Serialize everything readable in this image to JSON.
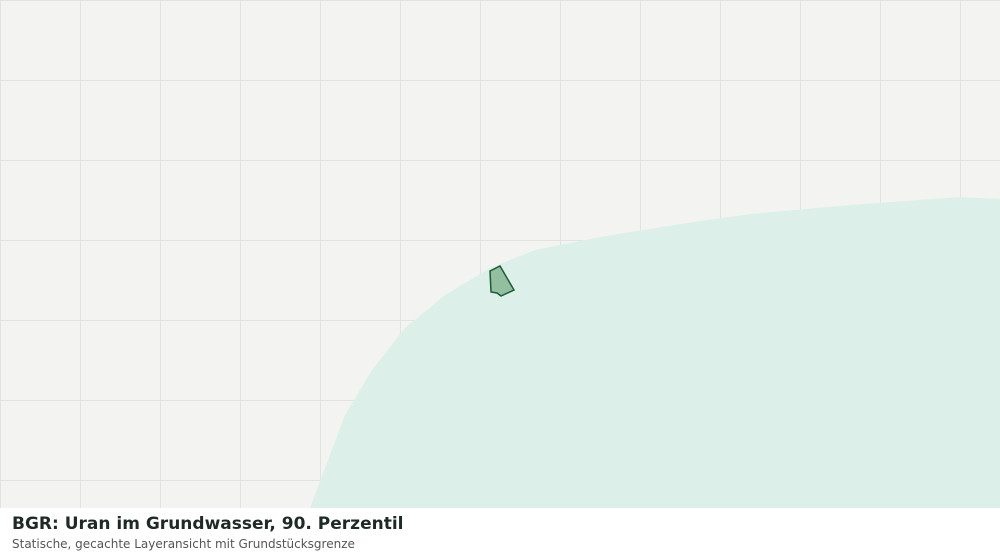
{
  "header": {
    "title": "BGR: Uran im Grundwasser, 90. Perzentil",
    "subtitle": "Statische, gecachte Layeransicht mit Grundstücksgrenze"
  }
}
